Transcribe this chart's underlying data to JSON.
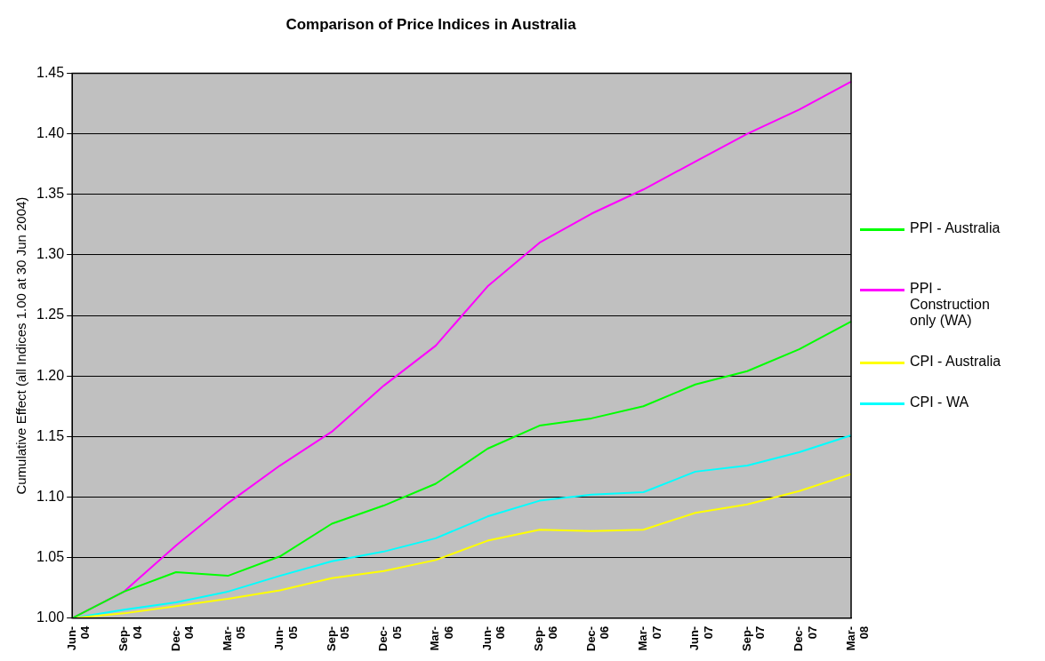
{
  "chart_data": {
    "type": "line",
    "title": "Comparison of Price Indices in Australia",
    "ylabel": "Cumulative Effect (all Indices 1.00 at 30 Jun 2004)",
    "categories": [
      "Jun-04",
      "Sep-04",
      "Dec-04",
      "Mar-05",
      "Jun-05",
      "Sep-05",
      "Dec-05",
      "Mar-06",
      "Jun-06",
      "Sep-06",
      "Dec-06",
      "Mar-07",
      "Jun-07",
      "Sep-07",
      "Dec-07",
      "Mar-08"
    ],
    "series": [
      {
        "name": "PPI - Australia",
        "color": "#00ff00",
        "values": [
          1.0,
          1.022,
          1.038,
          1.035,
          1.051,
          1.078,
          1.093,
          1.111,
          1.14,
          1.159,
          1.165,
          1.175,
          1.193,
          1.204,
          1.222,
          1.245
        ]
      },
      {
        "name": "PPI - Construction only (WA)",
        "color": "#ff00ff",
        "values": [
          1.0,
          1.022,
          1.06,
          1.095,
          1.126,
          1.154,
          1.192,
          1.225,
          1.274,
          1.31,
          1.334,
          1.354,
          1.377,
          1.4,
          1.42,
          1.443
        ]
      },
      {
        "name": "CPI - Australia",
        "color": "#ffff00",
        "values": [
          1.0,
          1.004,
          1.01,
          1.016,
          1.023,
          1.033,
          1.039,
          1.048,
          1.064,
          1.073,
          1.072,
          1.073,
          1.087,
          1.094,
          1.105,
          1.119
        ]
      },
      {
        "name": "CPI - WA",
        "color": "#00ffff",
        "values": [
          1.0,
          1.007,
          1.013,
          1.022,
          1.035,
          1.047,
          1.055,
          1.066,
          1.084,
          1.097,
          1.102,
          1.104,
          1.121,
          1.126,
          1.137,
          1.151
        ]
      }
    ],
    "ylim": [
      1.0,
      1.45
    ],
    "yticks": [
      {
        "value": 1.0,
        "label": "1.00"
      },
      {
        "value": 1.05,
        "label": "1.05"
      },
      {
        "value": 1.1,
        "label": "1.10"
      },
      {
        "value": 1.15,
        "label": "1.15"
      },
      {
        "value": 1.2,
        "label": "1.20"
      },
      {
        "value": 1.25,
        "label": "1.25"
      },
      {
        "value": 1.3,
        "label": "1.30"
      },
      {
        "value": 1.35,
        "label": "1.35"
      },
      {
        "value": 1.4,
        "label": "1.40"
      },
      {
        "value": 1.45,
        "label": "1.45"
      }
    ],
    "grid": "y",
    "legend": "right",
    "marker": "none",
    "line_style": "solid"
  }
}
